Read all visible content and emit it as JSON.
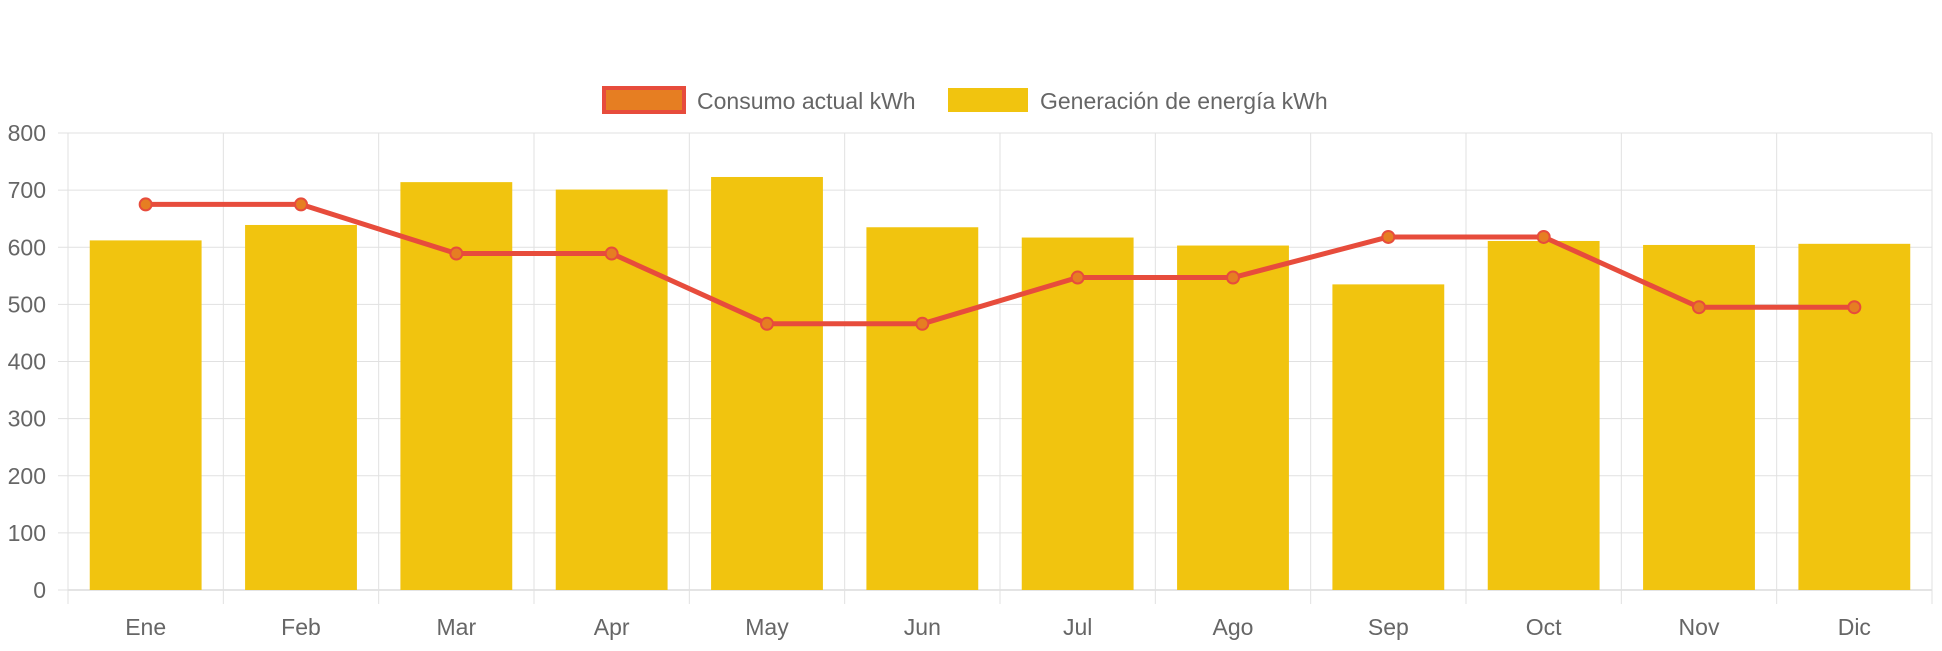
{
  "chart_data": {
    "type": "bar",
    "categories": [
      "Ene",
      "Feb",
      "Mar",
      "Apr",
      "May",
      "Jun",
      "Jul",
      "Ago",
      "Sep",
      "Oct",
      "Nov",
      "Dic"
    ],
    "series": [
      {
        "name": "Consumo actual kWh",
        "type": "line",
        "values": [
          675,
          675,
          589,
          589,
          466,
          466,
          547,
          547,
          618,
          618,
          495,
          495
        ],
        "color": "#e74c3c",
        "point_color": "#e67e22"
      },
      {
        "name": "Generación de energía kWh",
        "type": "bar",
        "values": [
          612,
          639,
          714,
          701,
          723,
          635,
          617,
          603,
          535,
          611,
          604,
          606
        ],
        "color": "#f1c40f"
      }
    ],
    "ylim": [
      0,
      800
    ],
    "yticks": [
      "0",
      "100",
      "200",
      "300",
      "400",
      "500",
      "600",
      "700",
      "800"
    ],
    "grid": true,
    "legend_position": "top-center"
  }
}
